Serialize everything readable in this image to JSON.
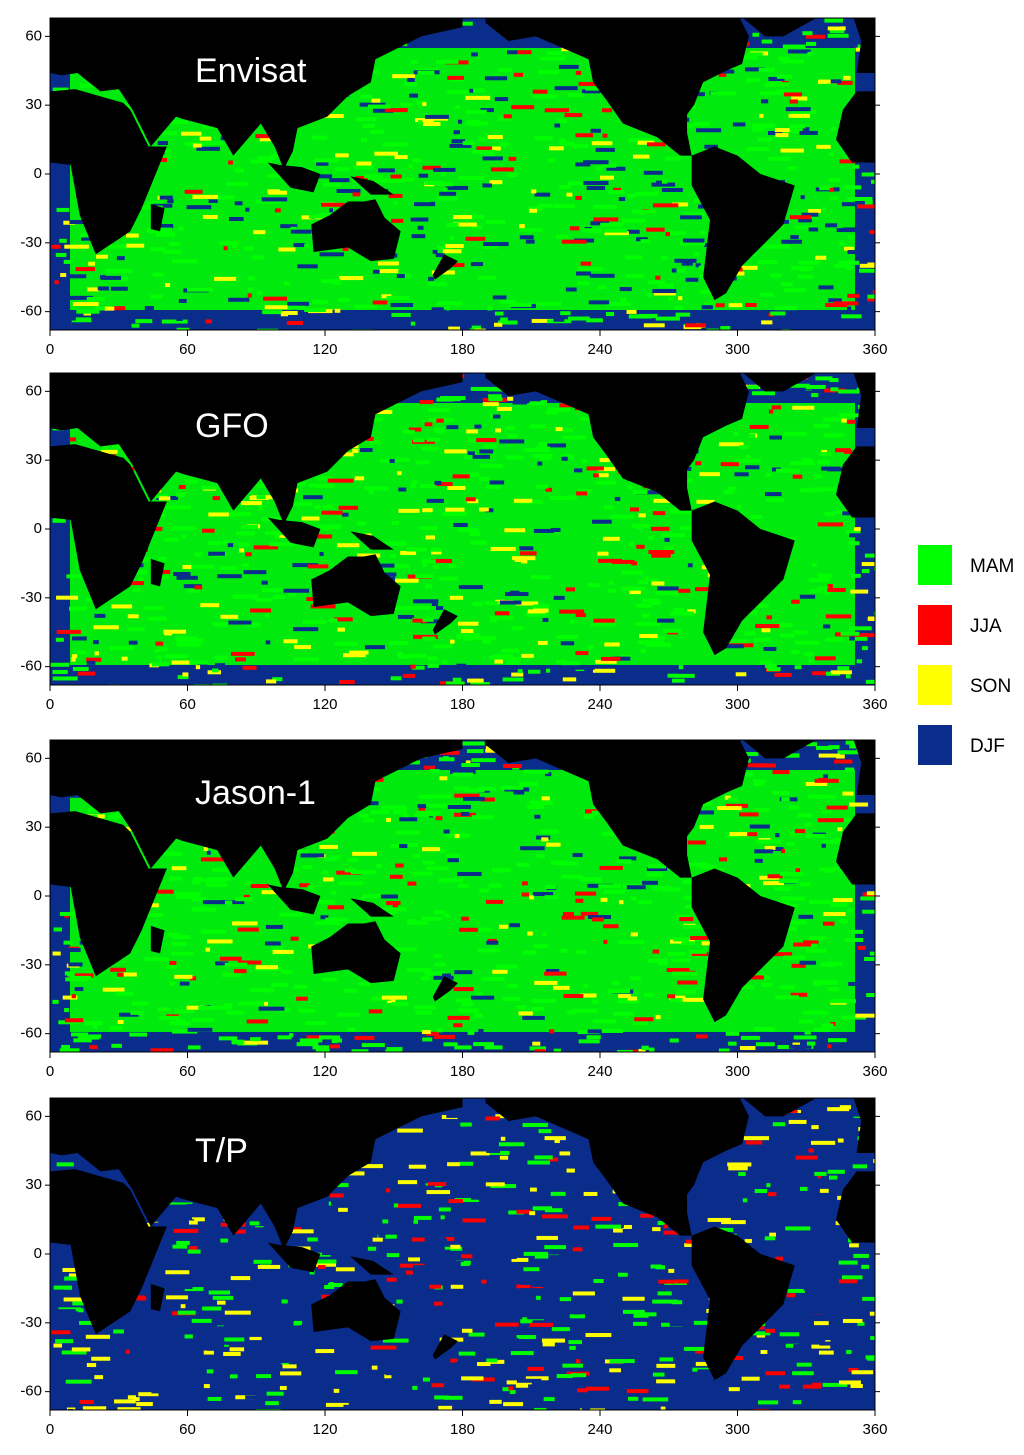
{
  "panels": [
    {
      "title": "Envisat",
      "xlim": [
        0,
        360
      ],
      "ylim": [
        -68,
        68
      ],
      "xticks": [
        0,
        60,
        120,
        180,
        240,
        300,
        360
      ],
      "yticks": [
        -60,
        -30,
        0,
        30,
        60
      ]
    },
    {
      "title": "GFO",
      "xlim": [
        0,
        360
      ],
      "ylim": [
        -68,
        68
      ],
      "xticks": [
        0,
        60,
        120,
        180,
        240,
        300,
        360
      ],
      "yticks": [
        -60,
        -30,
        0,
        30,
        60
      ]
    },
    {
      "title": "Jason-1",
      "xlim": [
        0,
        360
      ],
      "ylim": [
        -68,
        68
      ],
      "xticks": [
        0,
        60,
        120,
        180,
        240,
        300,
        360
      ],
      "yticks": [
        -60,
        -30,
        0,
        30,
        60
      ]
    },
    {
      "title": "T/P",
      "xlim": [
        0,
        360
      ],
      "ylim": [
        -68,
        68
      ],
      "xticks": [
        0,
        60,
        120,
        180,
        240,
        300,
        360
      ],
      "yticks": [
        -60,
        -30,
        0,
        30,
        60
      ]
    }
  ],
  "legend": [
    {
      "label": "MAM",
      "color": "#00ff00"
    },
    {
      "label": "JJA",
      "color": "#ff0000"
    },
    {
      "label": "SON",
      "color": "#ffff00"
    },
    {
      "label": "DJF",
      "color": "#0a2d8c"
    }
  ]
}
